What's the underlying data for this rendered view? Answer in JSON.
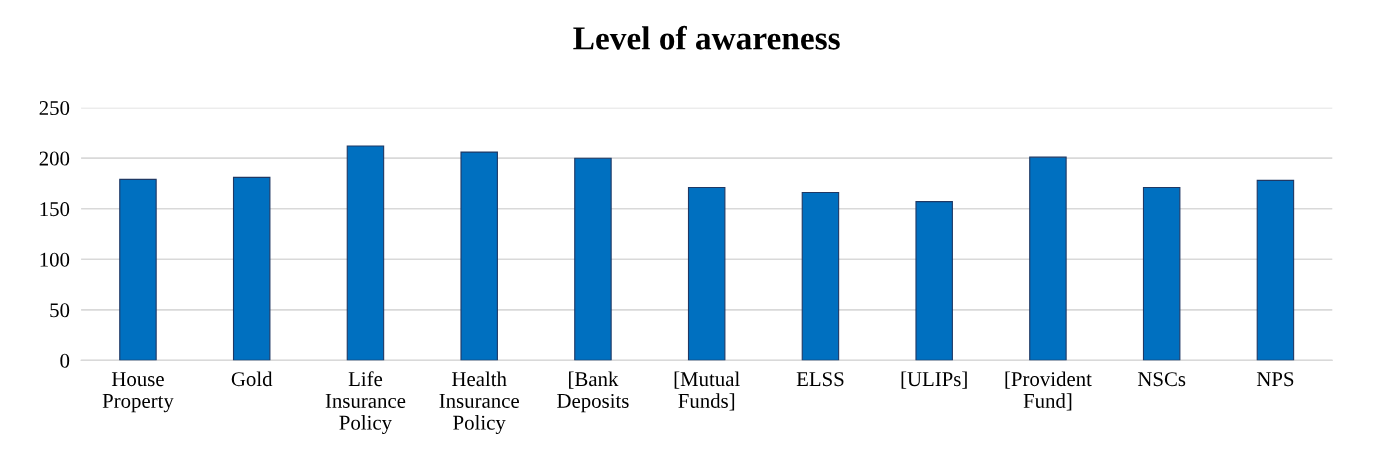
{
  "chart_data": {
    "type": "bar",
    "title": "Level of awareness",
    "categories": [
      "House\nProperty",
      "Gold",
      "Life\nInsurance\nPolicy",
      "Health\nInsurance\nPolicy",
      "[Bank\nDeposits",
      "[Mutual\nFunds]",
      "ELSS",
      "[ULIPs]",
      "[Provident\nFund]",
      "NSCs",
      "NPS"
    ],
    "values": [
      179,
      181,
      212,
      206,
      200,
      171,
      166,
      157,
      201,
      171,
      178
    ],
    "color": "#0070c0",
    "ylim": [
      0,
      250
    ],
    "yticks": [
      0,
      50,
      100,
      150,
      200,
      250
    ],
    "grid": "y",
    "legend": false
  }
}
